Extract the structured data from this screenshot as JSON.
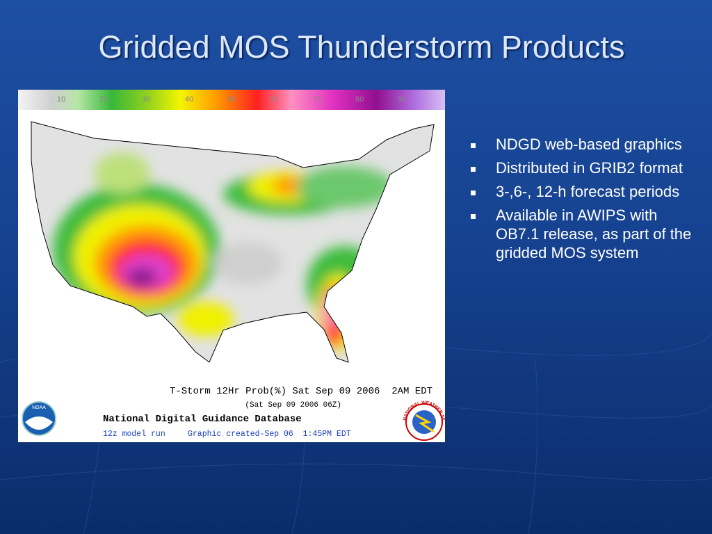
{
  "title": "Gridded MOS Thunderstorm Products",
  "bullets": [
    "NDGD web-based graphics",
    "Distributed in GRIB2 format",
    "3-,6-, 12-h forecast periods",
    "Available in AWIPS with OB7.1 release, as part of the gridded MOS system"
  ],
  "figure": {
    "scale_labels": [
      10,
      20,
      30,
      40,
      50,
      60,
      70,
      80,
      90
    ],
    "caption_line1": "T-Storm 12Hr Prob(%) Sat Sep 09 2006  2AM EDT",
    "caption_line2": "(Sat Sep 09 2006 06Z)",
    "database": "National Digital Guidance Database",
    "model_run": "12z model run",
    "created": "Graphic created-Sep 06  1:45PM EDT",
    "logo_left": "NOAA",
    "logo_right": "NATIONAL WEATHER SERVICE"
  }
}
